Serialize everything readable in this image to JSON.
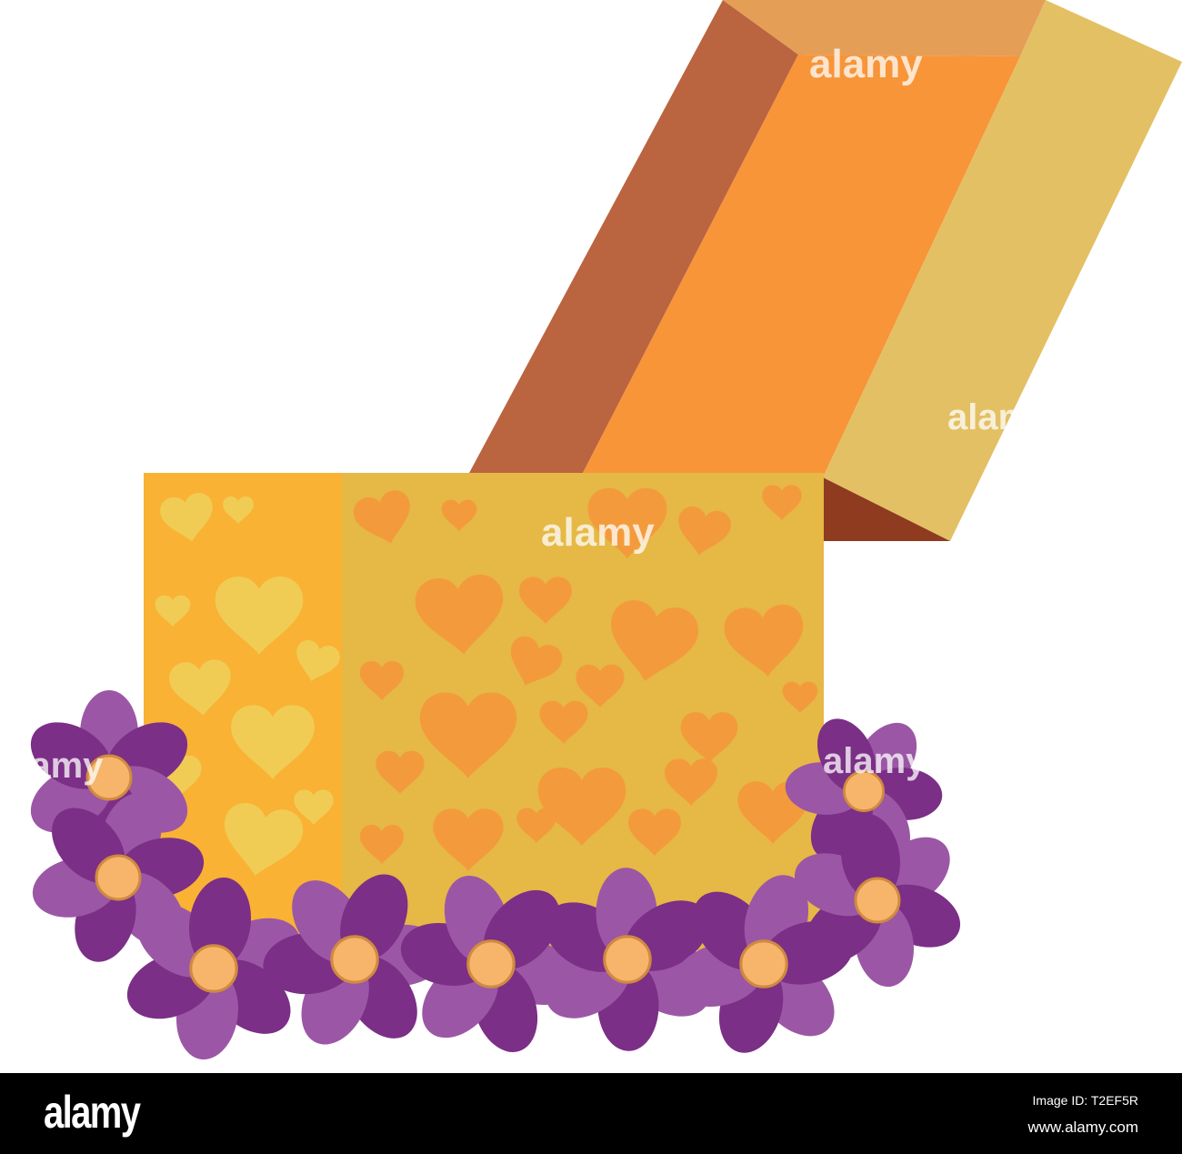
{
  "illustration": {
    "subject": "open gift box with heart pattern surrounded by purple flowers",
    "colors": {
      "lid_top": "#e59e56",
      "lid_left": "#bb6440",
      "lid_inside": "#f79538",
      "lid_right": "#e3c064",
      "lid_shadow": "#8e3b1f",
      "box_left": "#f9b233",
      "box_front": "#e6b845",
      "hearts_left": "#f0cc55",
      "hearts_front": "#f39b3c",
      "petal_light": "#9b57a5",
      "petal_dark": "#7b2f86",
      "flower_center": "#f6b56a"
    },
    "watermark_text": "alamy"
  },
  "footer": {
    "logo": "alamy",
    "image_id": "Image ID: T2EF5R",
    "url": "www.alamy.com"
  }
}
